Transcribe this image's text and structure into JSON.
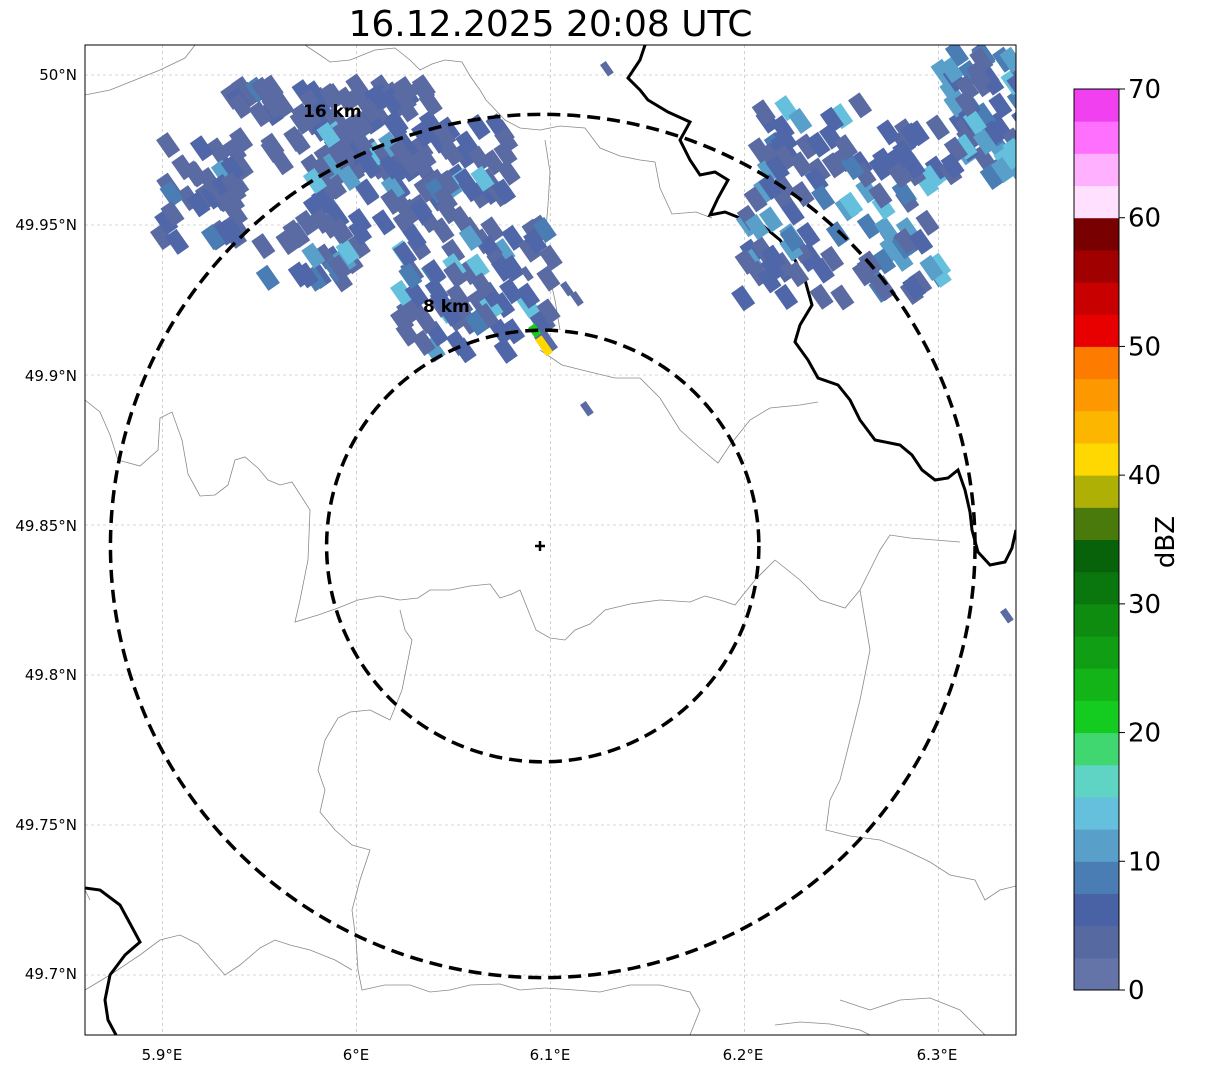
{
  "title": "16.12.2025 20:08 UTC",
  "map": {
    "lon_range": [
      5.86,
      6.34
    ],
    "lat_range": [
      49.68,
      50.01
    ],
    "lon_ticks": [
      {
        "value": 5.9,
        "label": "5.9°E"
      },
      {
        "value": 6.0,
        "label": "6°E"
      },
      {
        "value": 6.1,
        "label": "6.1°E"
      },
      {
        "value": 6.2,
        "label": "6.2°E"
      },
      {
        "value": 6.3,
        "label": "6.3°E"
      }
    ],
    "lat_ticks": [
      {
        "value": 50.0,
        "label": "50°N"
      },
      {
        "value": 49.95,
        "label": "49.95°N"
      },
      {
        "value": 49.9,
        "label": "49.9°N"
      },
      {
        "value": 49.85,
        "label": "49.85°N"
      },
      {
        "value": 49.8,
        "label": "49.8°N"
      },
      {
        "value": 49.75,
        "label": "49.75°N"
      },
      {
        "value": 49.7,
        "label": "49.7°N"
      }
    ],
    "grid": true,
    "radar_site": {
      "lon": 6.096,
      "lat": 49.843
    },
    "range_rings": [
      {
        "radius_km": 8,
        "label": "8 km",
        "label_lon": 6.047,
        "label_lat": 49.923
      },
      {
        "radius_km": 16,
        "label": "16 km",
        "label_lon": 5.99,
        "label_lat": 49.988
      }
    ]
  },
  "colorbar": {
    "label": "dBZ",
    "min": 0,
    "max": 70,
    "step": 2.5,
    "ticks": [
      0,
      10,
      20,
      30,
      40,
      50,
      60,
      70
    ],
    "colors": [
      "#6474a8",
      "#5669a0",
      "#4862a5",
      "#4a7db4",
      "#58a0ca",
      "#64c0dc",
      "#60d4c4",
      "#40d670",
      "#14cc20",
      "#12b418",
      "#109e14",
      "#0e8c10",
      "#0a760e",
      "#08620a",
      "#4a7a0c",
      "#aeb006",
      "#fed800",
      "#fdb600",
      "#fd9800",
      "#fd7c00",
      "#e80000",
      "#c80000",
      "#a00000",
      "#780000",
      "#ffe0ff",
      "#ffb0ff",
      "#ff70ff",
      "#f040f0"
    ]
  }
}
